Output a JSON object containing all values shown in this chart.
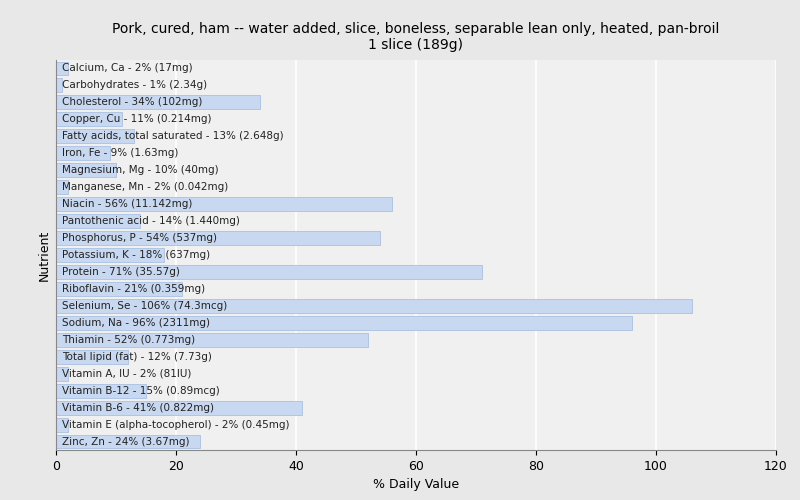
{
  "title": "Pork, cured, ham -- water added, slice, boneless, separable lean only, heated, pan-broil\n1 slice (189g)",
  "xlabel": "% Daily Value",
  "ylabel": "Nutrient",
  "xlim": [
    0,
    120
  ],
  "xticks": [
    0,
    20,
    40,
    60,
    80,
    100,
    120
  ],
  "background_color": "#e8e8e8",
  "plot_background": "#f0f0f0",
  "bar_color": "#c8d8f0",
  "bar_edge_color": "#a0b8e0",
  "nutrients": [
    "Calcium, Ca - 2% (17mg)",
    "Carbohydrates - 1% (2.34g)",
    "Cholesterol - 34% (102mg)",
    "Copper, Cu - 11% (0.214mg)",
    "Fatty acids, total saturated - 13% (2.648g)",
    "Iron, Fe - 9% (1.63mg)",
    "Magnesium, Mg - 10% (40mg)",
    "Manganese, Mn - 2% (0.042mg)",
    "Niacin - 56% (11.142mg)",
    "Pantothenic acid - 14% (1.440mg)",
    "Phosphorus, P - 54% (537mg)",
    "Potassium, K - 18% (637mg)",
    "Protein - 71% (35.57g)",
    "Riboflavin - 21% (0.359mg)",
    "Selenium, Se - 106% (74.3mcg)",
    "Sodium, Na - 96% (2311mg)",
    "Thiamin - 52% (0.773mg)",
    "Total lipid (fat) - 12% (7.73g)",
    "Vitamin A, IU - 2% (81IU)",
    "Vitamin B-12 - 15% (0.89mcg)",
    "Vitamin B-6 - 41% (0.822mg)",
    "Vitamin E (alpha-tocopherol) - 2% (0.45mg)",
    "Zinc, Zn - 24% (3.67mg)"
  ],
  "values": [
    2,
    1,
    34,
    11,
    13,
    9,
    10,
    2,
    56,
    14,
    54,
    18,
    71,
    21,
    106,
    96,
    52,
    12,
    2,
    15,
    41,
    2,
    24
  ],
  "title_fontsize": 10,
  "label_fontsize": 7.5,
  "tick_fontsize": 9,
  "bar_height": 0.82
}
